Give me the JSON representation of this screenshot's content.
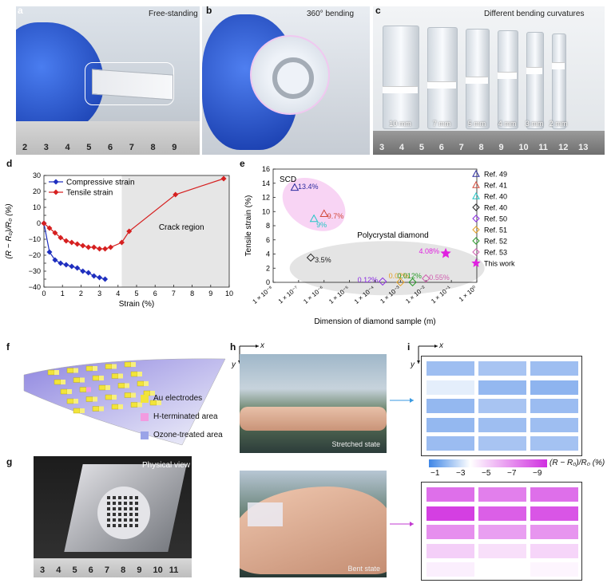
{
  "panels": {
    "a": {
      "label": "a",
      "caption": "Free-standing",
      "ruler_ticks": [
        "2",
        "3",
        "4",
        "5",
        "6",
        "7",
        "8",
        "9"
      ]
    },
    "b": {
      "label": "b",
      "caption": "360° bending"
    },
    "c": {
      "label": "c",
      "caption": "Different bending curvatures",
      "tubes": [
        "10 mm",
        "7 mm",
        "5 mm",
        "4 mm",
        "3 mm",
        "2 mm"
      ],
      "ruler_ticks": [
        "3",
        "4",
        "5",
        "6",
        "7",
        "8",
        "9",
        "10",
        "11",
        "12",
        "13"
      ]
    },
    "d": {
      "label": "d"
    },
    "e": {
      "label": "e"
    },
    "f": {
      "label": "f",
      "legend": [
        {
          "text": "Au electrodes",
          "color": "#f2e43a"
        },
        {
          "text": "H-terminated area",
          "color": "#f29be0"
        },
        {
          "text": "Ozone-treated area",
          "color": "#9aa3e8"
        }
      ]
    },
    "g": {
      "label": "g",
      "caption": "Physical view",
      "ruler_ticks": [
        "3",
        "4",
        "5",
        "6",
        "7",
        "8",
        "9",
        "10",
        "11"
      ]
    },
    "h": {
      "label": "h",
      "axis_x": "x",
      "axis_y": "y",
      "state_top": "Stretched state",
      "state_bottom": "Bent state"
    },
    "i": {
      "label": "i",
      "axis_x": "x",
      "axis_y": "y",
      "colorbar_label": "(R − R₀)/R₀ (%)",
      "colorbar_ticks": [
        "−1",
        "−3",
        "−5",
        "−7",
        "−9"
      ],
      "colorbar_colors": [
        "#3f86e6",
        "#ffffff",
        "#d02fe0"
      ],
      "grid_top": [
        [
          -1.5,
          -1.2,
          -1.5
        ],
        [
          -3.0,
          -1.8,
          -2.0
        ],
        [
          -1.8,
          -1.2,
          -1.6
        ],
        [
          -1.8,
          -1.5,
          -1.5
        ],
        [
          -1.6,
          -1.2,
          -1.3
        ]
      ],
      "grid_bottom": [
        [
          -8.0,
          -7.5,
          -8.0
        ],
        [
          -9.5,
          -8.5,
          -8.8
        ],
        [
          -7.0,
          -6.5,
          -6.8
        ],
        [
          -5.0,
          -4.5,
          -4.8
        ],
        [
          -4.0,
          -3.5,
          -3.8
        ]
      ]
    }
  },
  "chart_data": [
    {
      "type": "line",
      "panel": "d",
      "xlabel": "Strain (%)",
      "ylabel": "(R − R₀)/R₀ (%)",
      "xlim": [
        0,
        10
      ],
      "ylim": [
        -40,
        30
      ],
      "xticks": [
        "0",
        "1",
        "2",
        "3",
        "4",
        "5",
        "6",
        "7",
        "8",
        "9",
        "10"
      ],
      "yticks": [
        "30",
        "25",
        "20",
        "15",
        "10",
        "5",
        "0",
        "−5",
        "−10",
        "−15",
        "−20",
        "−25",
        "−30",
        "−35",
        "−40"
      ],
      "annotation": "Crack region",
      "crack_region": [
        4.2,
        10
      ],
      "legend_position": "top-left",
      "series": [
        {
          "name": "Compressive strain",
          "color": "#1f2fbf",
          "x": [
            0,
            0.3,
            0.6,
            0.9,
            1.2,
            1.5,
            1.8,
            2.1,
            2.4,
            2.7,
            3.0,
            3.3
          ],
          "y": [
            0,
            -18,
            -23,
            -25,
            -26,
            -27,
            -28,
            -30,
            -31,
            -33,
            -34,
            -35
          ]
        },
        {
          "name": "Tensile strain",
          "color": "#d62020",
          "x": [
            0,
            0.3,
            0.6,
            0.9,
            1.2,
            1.5,
            1.8,
            2.1,
            2.4,
            2.7,
            3.0,
            3.3,
            3.6,
            4.2,
            4.6,
            7.1,
            9.7
          ],
          "y": [
            0,
            -3,
            -6,
            -9,
            -11,
            -12,
            -13,
            -14,
            -15,
            -15,
            -16,
            -16,
            -15,
            -12,
            -5,
            18,
            28
          ]
        }
      ]
    },
    {
      "type": "scatter",
      "panel": "e",
      "xlabel": "Dimension of diamond sample (m)",
      "ylabel": "Tensile strain (%)",
      "xscale": "log",
      "xlim": [
        1e-08,
        1
      ],
      "ylim": [
        0,
        16
      ],
      "xticks": [
        "1 × 10⁻⁸",
        "1 × 10⁻⁷",
        "1 × 10⁻⁶",
        "1 × 10⁻⁵",
        "1 × 10⁻⁴",
        "1 × 10⁻³",
        "1 × 10⁻²",
        "1 × 10⁻¹",
        "1 × 10⁰"
      ],
      "yticks": [
        "0",
        "2",
        "4",
        "6",
        "8",
        "10",
        "12",
        "14",
        "16"
      ],
      "region_labels": [
        "SCD",
        "Polycrystal diamond"
      ],
      "legend_position": "right",
      "points": [
        {
          "ref": "Ref. 49",
          "x": 7e-08,
          "y": 13.4,
          "label": "13.4%",
          "color": "#2b2b9e",
          "marker": "triangle"
        },
        {
          "ref": "Ref. 41",
          "x": 1e-06,
          "y": 9.7,
          "label": "9.7%",
          "color": "#d24a3a",
          "marker": "triangle"
        },
        {
          "ref": "Ref. 40",
          "x": 4e-07,
          "y": 9.0,
          "label": "9%",
          "color": "#22c6c6",
          "marker": "triangle"
        },
        {
          "ref": "Ref. 40",
          "x": 3e-07,
          "y": 3.5,
          "label": "3.5%",
          "color": "#222222",
          "marker": "diamond"
        },
        {
          "ref": "Ref. 50",
          "x": 0.0002,
          "y": 0.12,
          "label": "0.12%",
          "color": "#8a2be2",
          "marker": "diamond"
        },
        {
          "ref": "Ref. 51",
          "x": 0.001,
          "y": 0.02,
          "label": "0.02%",
          "color": "#e6a020",
          "marker": "diamond"
        },
        {
          "ref": "Ref. 52",
          "x": 0.003,
          "y": 0.012,
          "label": "0.012%",
          "color": "#2a9a2a",
          "marker": "diamond"
        },
        {
          "ref": "Ref. 53",
          "x": 0.01,
          "y": 0.55,
          "label": "0.55%",
          "color": "#d060b0",
          "marker": "diamond"
        },
        {
          "ref": "This work",
          "x": 0.06,
          "y": 4.08,
          "label": "4.08%",
          "color": "#e020e0",
          "marker": "star"
        }
      ],
      "legend": [
        {
          "text": "Ref. 49",
          "color": "#2b2b9e",
          "marker": "triangle"
        },
        {
          "text": "Ref. 41",
          "color": "#d24a3a",
          "marker": "triangle"
        },
        {
          "text": "Ref. 40",
          "color": "#22c6c6",
          "marker": "triangle"
        },
        {
          "text": "Ref. 40",
          "color": "#222222",
          "marker": "diamond"
        },
        {
          "text": "Ref. 50",
          "color": "#8a2be2",
          "marker": "diamond"
        },
        {
          "text": "Ref. 51",
          "color": "#e6a020",
          "marker": "diamond"
        },
        {
          "text": "Ref. 52",
          "color": "#2a9a2a",
          "marker": "diamond"
        },
        {
          "text": "Ref. 53",
          "color": "#d060b0",
          "marker": "diamond"
        },
        {
          "text": "This work",
          "color": "#e020e0",
          "marker": "star"
        }
      ]
    }
  ]
}
